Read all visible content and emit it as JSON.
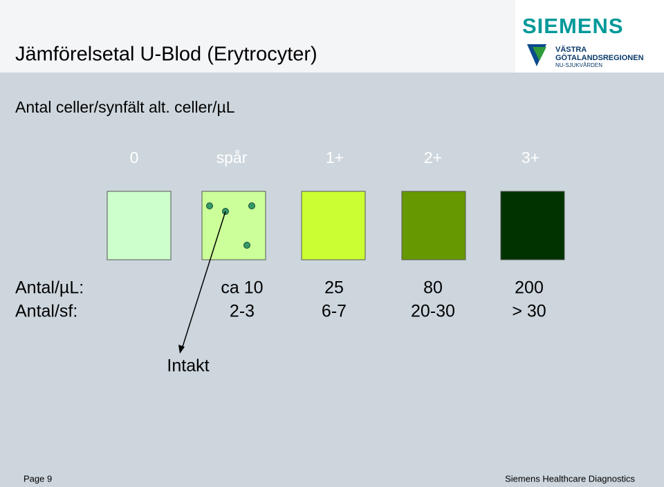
{
  "header": {
    "title": "Jämförelsetal U-Blod (Erytrocyter)",
    "logo": {
      "brand": "SIEMENS",
      "region_lines": [
        "VÄSTRA",
        "GÖTALANDSREGIONEN",
        "NU-SJUKVÅRDEN"
      ]
    }
  },
  "subtitle": "Antal celler/synfält alt. celler/µL",
  "levels": [
    "0",
    "spår",
    "1+",
    "2+",
    "3+"
  ],
  "rows": [
    {
      "label": "Antal/µL:",
      "values": [
        "ca 10",
        "25",
        "80",
        "200"
      ]
    },
    {
      "label": "Antal/sf:",
      "values": [
        "2-3",
        "6-7",
        "20-30",
        "> 30"
      ]
    }
  ],
  "annotation": "Intakt",
  "footer": {
    "page": "Page 9",
    "company": "Siemens Healthcare Diagnostics"
  }
}
